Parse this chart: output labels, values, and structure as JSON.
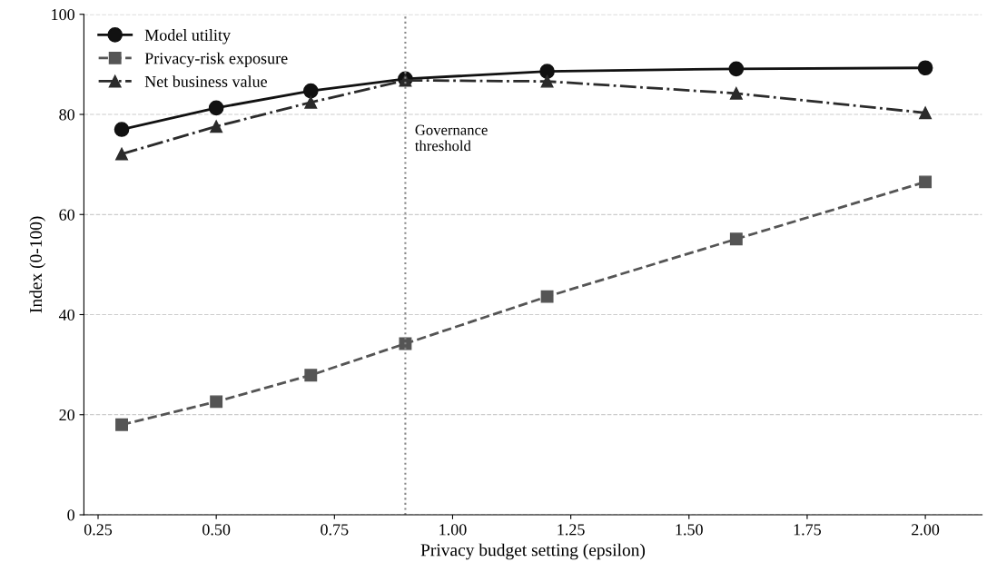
{
  "chart_data": {
    "type": "line",
    "xlabel": "Privacy budget setting (epsilon)",
    "ylabel": "Index (0-100)",
    "x": [
      0.3,
      0.5,
      0.7,
      0.9,
      1.2,
      1.6,
      2.0
    ],
    "series": [
      {
        "name": "Model utility",
        "color": "#111111",
        "marker": "circle",
        "line_style": "solid",
        "values": [
          77.0,
          81.3,
          84.7,
          87.1,
          88.6,
          89.1,
          89.3
        ]
      },
      {
        "name": "Privacy-risk exposure",
        "color": "#555555",
        "marker": "square",
        "line_style": "dashed",
        "values": [
          18.0,
          22.6,
          27.9,
          34.2,
          43.6,
          55.1,
          66.5
        ]
      },
      {
        "name": "Net business value",
        "color": "#2b2b2b",
        "marker": "triangle",
        "line_style": "dashdot",
        "values": [
          72.1,
          77.6,
          82.4,
          86.8,
          86.6,
          84.2,
          80.3
        ]
      }
    ],
    "ref_lines": [
      {
        "axis": "x",
        "value": 0.9,
        "label": "Governance\nthreshold",
        "color": "#888888",
        "line_style": "dotted"
      }
    ],
    "xlim": [
      0.22,
      2.12
    ],
    "ylim": [
      0,
      100
    ],
    "xticks": [
      {
        "value": 0.25,
        "label": "0.25"
      },
      {
        "value": 0.5,
        "label": "0.50"
      },
      {
        "value": 0.75,
        "label": "0.75"
      },
      {
        "value": 1.0,
        "label": "1.00"
      },
      {
        "value": 1.25,
        "label": "1.25"
      },
      {
        "value": 1.5,
        "label": "1.50"
      },
      {
        "value": 1.75,
        "label": "1.75"
      },
      {
        "value": 2.0,
        "label": "2.00"
      }
    ],
    "yticks": [
      0,
      20,
      40,
      60,
      80,
      100
    ],
    "grid": "y",
    "legend": "top left"
  }
}
